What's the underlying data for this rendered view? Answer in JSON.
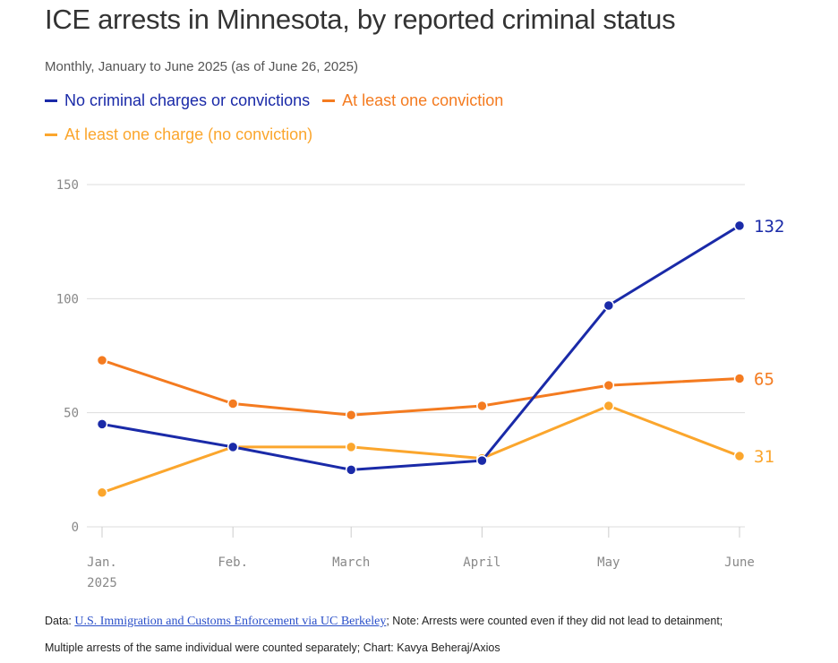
{
  "chart_data": {
    "type": "line",
    "title": "ICE arrests in Minnesota, by reported criminal status",
    "subtitle": "Monthly, January to June 2025 (as of June 26, 2025)",
    "x": [
      "2025-01-01",
      "2025-02-01",
      "2025-03-01",
      "2025-04-01",
      "2025-05-01",
      "2025-06-01"
    ],
    "x_day_offsets": [
      0,
      31,
      59,
      90,
      120,
      151
    ],
    "x_tick_labels": [
      "Jan.",
      "Feb.",
      "March",
      "April",
      "May",
      "June"
    ],
    "x_tick_sublabel": "2025",
    "y_ticks": [
      0,
      50,
      100,
      150
    ],
    "ylim": [
      0,
      150
    ],
    "grid": true,
    "legend_placement": "top",
    "series": [
      {
        "name": "No criminal charges or convictions",
        "color": "#1a2aa8",
        "values": [
          45,
          35,
          25,
          29,
          97,
          132
        ],
        "end_label": "132"
      },
      {
        "name": "At least one conviction",
        "color": "#f47b20",
        "values": [
          73,
          54,
          49,
          53,
          62,
          65
        ],
        "end_label": "65"
      },
      {
        "name": "At least one charge (no conviction)",
        "color": "#fba62d",
        "values": [
          15,
          35,
          35,
          30,
          53,
          31
        ],
        "end_label": "31"
      }
    ]
  },
  "footer": {
    "data_prefix": "Data: ",
    "source_link": "U.S. Immigration and Customs Enforcement via UC Berkeley",
    "line1_rest": "; Note: Arrests were counted even if they did not lead to detainment;",
    "line2": "Multiple arrests of the same individual were counted separately; Chart: Kavya Beheraj/Axios"
  }
}
